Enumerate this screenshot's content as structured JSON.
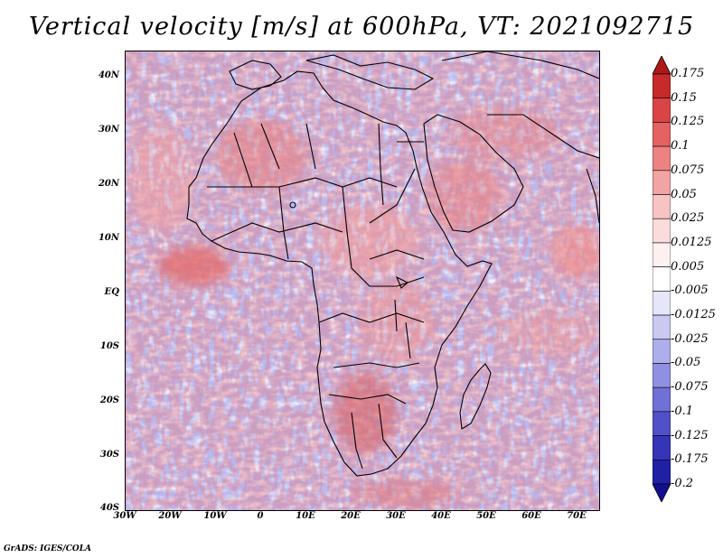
{
  "title": "Vertical velocity [m/s] at 600hPa, VT: 2021092715",
  "credit": "GrADS: IGES/COLA",
  "map": {
    "lat_ticks": [
      "40N",
      "30N",
      "20N",
      "10N",
      "EQ",
      "10S",
      "20S",
      "30S",
      "40S"
    ],
    "lon_ticks": [
      "30W",
      "20W",
      "10W",
      "0",
      "10E",
      "20E",
      "30E",
      "40E",
      "50E",
      "60E",
      "70E"
    ],
    "lat_range": [
      -40,
      45
    ],
    "lon_range": [
      -30,
      75
    ]
  },
  "colorbar": {
    "levels": [
      "0.175",
      "0.15",
      "0.125",
      "0.1",
      "0.075",
      "0.05",
      "0.025",
      "0.0125",
      "0.005",
      "-0.005",
      "-0.0125",
      "-0.025",
      "-0.05",
      "-0.075",
      "-0.1",
      "-0.125",
      "-0.175",
      "-0.2"
    ],
    "colors": [
      "#b01818",
      "#c62a2a",
      "#d94545",
      "#e46262",
      "#ec8282",
      "#f2a3a3",
      "#f7c3c3",
      "#fbdcdc",
      "#fff0f0",
      "#ffffff",
      "#e6e6fb",
      "#c9c9f2",
      "#aeaeec",
      "#9090e2",
      "#7070d6",
      "#5050c8",
      "#3535b8",
      "#2020a6",
      "#10108e"
    ]
  }
}
